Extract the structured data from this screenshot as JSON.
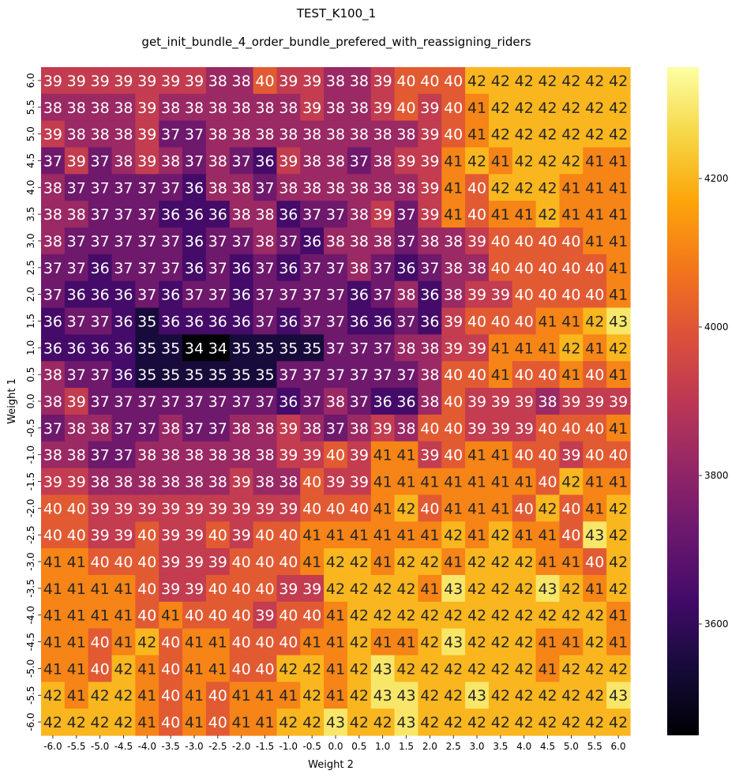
{
  "chart_data": {
    "type": "heatmap",
    "title": "TEST_K100_1",
    "subtitle": "get_init_bundle_4_order_bundle_prefered_with_reassigning_riders",
    "xlabel": "Weight 2",
    "ylabel": "Weight 1",
    "x_categories": [
      "-6.0",
      "-5.5",
      "-5.0",
      "-4.5",
      "-4.0",
      "-3.5",
      "-3.0",
      "-2.5",
      "-2.0",
      "-1.5",
      "-1.0",
      "-0.5",
      "0.0",
      "0.5",
      "1.0",
      "1.5",
      "2.0",
      "2.5",
      "3.0",
      "3.5",
      "4.0",
      "4.5",
      "5.0",
      "5.5",
      "6.0"
    ],
    "y_categories": [
      "6.0",
      "5.5",
      "5.0",
      "4.5",
      "4.0",
      "3.5",
      "3.0",
      "2.5",
      "2.0",
      "1.5",
      "1.0",
      "0.5",
      "0.0",
      "-0.5",
      "-1.0",
      "-1.5",
      "-2.0",
      "-2.5",
      "-3.0",
      "-3.5",
      "-4.0",
      "-4.5",
      "-5.0",
      "-5.5",
      "-6.0"
    ],
    "annotations": [
      [
        39,
        39,
        39,
        39,
        39,
        39,
        39,
        38,
        38,
        40,
        39,
        39,
        38,
        38,
        39,
        40,
        40,
        40,
        42,
        42,
        42,
        42,
        42,
        42,
        42
      ],
      [
        38,
        38,
        38,
        38,
        39,
        38,
        38,
        38,
        38,
        38,
        38,
        39,
        38,
        38,
        39,
        40,
        39,
        40,
        41,
        42,
        42,
        42,
        42,
        42,
        42
      ],
      [
        39,
        38,
        38,
        38,
        39,
        37,
        37,
        38,
        38,
        38,
        38,
        38,
        38,
        38,
        38,
        38,
        39,
        40,
        41,
        42,
        42,
        42,
        42,
        42,
        42
      ],
      [
        37,
        39,
        37,
        38,
        39,
        38,
        37,
        38,
        37,
        36,
        39,
        38,
        38,
        37,
        38,
        39,
        39,
        41,
        42,
        41,
        42,
        42,
        42,
        41,
        41
      ],
      [
        38,
        37,
        37,
        37,
        37,
        37,
        36,
        38,
        38,
        37,
        38,
        38,
        38,
        38,
        38,
        38,
        39,
        41,
        40,
        42,
        42,
        42,
        41,
        41,
        41
      ],
      [
        38,
        38,
        37,
        37,
        37,
        36,
        36,
        36,
        38,
        38,
        36,
        37,
        37,
        38,
        39,
        37,
        39,
        41,
        40,
        41,
        41,
        42,
        41,
        41,
        41
      ],
      [
        38,
        37,
        37,
        37,
        37,
        37,
        36,
        37,
        37,
        38,
        37,
        36,
        38,
        38,
        38,
        37,
        38,
        38,
        39,
        40,
        40,
        40,
        40,
        41,
        41
      ],
      [
        37,
        37,
        36,
        37,
        37,
        37,
        36,
        37,
        36,
        37,
        36,
        37,
        37,
        38,
        37,
        36,
        37,
        38,
        38,
        40,
        40,
        40,
        40,
        40,
        41
      ],
      [
        37,
        36,
        36,
        36,
        37,
        36,
        37,
        37,
        36,
        37,
        37,
        37,
        37,
        36,
        37,
        38,
        36,
        38,
        39,
        39,
        40,
        40,
        40,
        40,
        41
      ],
      [
        36,
        37,
        37,
        36,
        35,
        36,
        36,
        36,
        36,
        37,
        36,
        37,
        37,
        36,
        36,
        37,
        36,
        39,
        40,
        40,
        40,
        41,
        41,
        42,
        43
      ],
      [
        36,
        36,
        36,
        36,
        35,
        35,
        34,
        34,
        35,
        35,
        35,
        35,
        37,
        37,
        37,
        38,
        38,
        39,
        39,
        41,
        41,
        41,
        42,
        41,
        42
      ],
      [
        38,
        37,
        37,
        36,
        35,
        35,
        35,
        35,
        35,
        35,
        37,
        37,
        37,
        37,
        37,
        37,
        38,
        40,
        40,
        41,
        40,
        40,
        41,
        40,
        41
      ],
      [
        38,
        39,
        37,
        37,
        37,
        37,
        37,
        37,
        37,
        37,
        36,
        37,
        38,
        37,
        36,
        36,
        38,
        40,
        39,
        39,
        39,
        38,
        39,
        39,
        39
      ],
      [
        37,
        38,
        38,
        37,
        37,
        38,
        37,
        37,
        38,
        38,
        39,
        38,
        37,
        38,
        39,
        38,
        40,
        40,
        39,
        39,
        39,
        40,
        40,
        40,
        41
      ],
      [
        38,
        38,
        37,
        37,
        38,
        38,
        38,
        38,
        38,
        38,
        39,
        39,
        40,
        39,
        41,
        41,
        39,
        40,
        41,
        41,
        40,
        40,
        39,
        40,
        40
      ],
      [
        39,
        39,
        38,
        38,
        38,
        38,
        38,
        38,
        39,
        38,
        38,
        40,
        39,
        39,
        41,
        41,
        41,
        41,
        41,
        41,
        41,
        40,
        42,
        41,
        41
      ],
      [
        40,
        40,
        39,
        39,
        39,
        39,
        39,
        39,
        39,
        39,
        39,
        40,
        40,
        40,
        41,
        42,
        40,
        41,
        41,
        41,
        40,
        42,
        40,
        41,
        42
      ],
      [
        40,
        40,
        39,
        39,
        40,
        39,
        39,
        40,
        39,
        40,
        40,
        41,
        41,
        41,
        41,
        41,
        41,
        42,
        41,
        42,
        41,
        41,
        40,
        43,
        42
      ],
      [
        41,
        41,
        40,
        40,
        40,
        39,
        39,
        39,
        40,
        40,
        40,
        41,
        42,
        42,
        41,
        42,
        42,
        41,
        42,
        42,
        42,
        41,
        41,
        40,
        42
      ],
      [
        41,
        41,
        41,
        41,
        40,
        39,
        39,
        40,
        40,
        40,
        39,
        39,
        42,
        42,
        42,
        42,
        41,
        43,
        42,
        42,
        42,
        43,
        42,
        41,
        42
      ],
      [
        41,
        41,
        41,
        41,
        40,
        41,
        40,
        40,
        40,
        39,
        40,
        40,
        41,
        42,
        42,
        42,
        42,
        42,
        42,
        42,
        42,
        42,
        42,
        42,
        41
      ],
      [
        41,
        41,
        40,
        41,
        42,
        40,
        41,
        41,
        40,
        40,
        40,
        41,
        41,
        42,
        41,
        41,
        42,
        43,
        42,
        42,
        42,
        41,
        41,
        42,
        41
      ],
      [
        41,
        41,
        40,
        42,
        41,
        40,
        41,
        41,
        40,
        40,
        42,
        42,
        41,
        42,
        43,
        42,
        42,
        42,
        42,
        42,
        42,
        41,
        42,
        42,
        42
      ],
      [
        42,
        41,
        42,
        42,
        41,
        40,
        41,
        40,
        41,
        41,
        41,
        42,
        41,
        42,
        43,
        43,
        42,
        42,
        43,
        42,
        42,
        42,
        42,
        42,
        43
      ],
      [
        42,
        42,
        42,
        42,
        41,
        40,
        41,
        40,
        41,
        41,
        42,
        42,
        43,
        42,
        42,
        43,
        42,
        42,
        42,
        42,
        42,
        42,
        42,
        42,
        42
      ]
    ],
    "colorbar": {
      "colormap": "inferno",
      "vmin": 3450,
      "vmax": 4350,
      "ticks": [
        "3600",
        "3800",
        "4000",
        "4200"
      ]
    },
    "grid": false
  }
}
